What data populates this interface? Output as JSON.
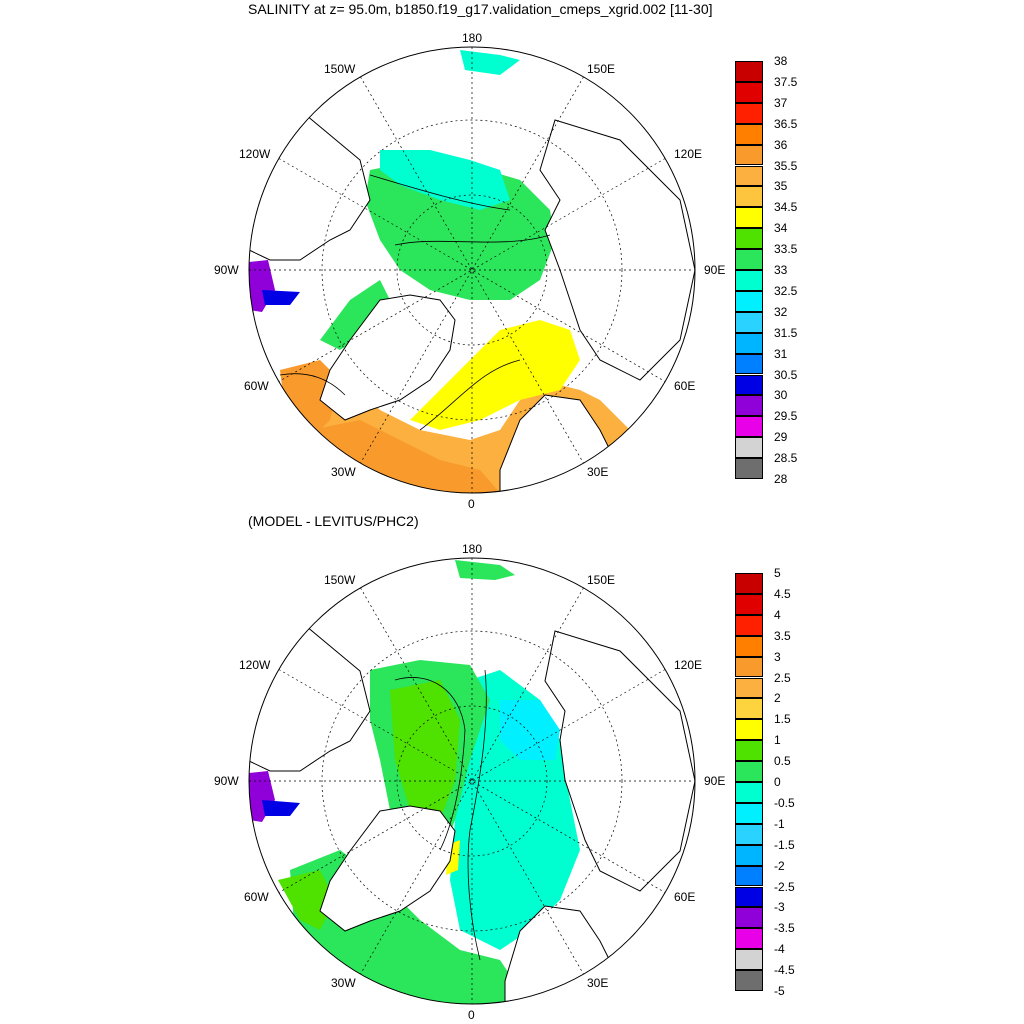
{
  "title": "SALINITY at z=  95.0m, b1850.f19_g17.validation_cmeps_xgrid.002 [11-30]",
  "subtitle": "(MODEL - LEVITUS/PHC2)",
  "longitude_labels": [
    "180",
    "150E",
    "120E",
    "90E",
    "60E",
    "30E",
    "0",
    "30W",
    "60W",
    "90W",
    "120W",
    "150W"
  ],
  "colorbar_top": {
    "labels": [
      "38",
      "37.5",
      "37",
      "36.5",
      "36",
      "35.5",
      "35",
      "34.5",
      "34",
      "33.5",
      "33",
      "32.5",
      "32",
      "31.5",
      "31",
      "30.5",
      "30",
      "29.5",
      "29",
      "28.5",
      "28"
    ],
    "colors": [
      "#c80000",
      "#e10000",
      "#ff2000",
      "#ff8000",
      "#f99a2c",
      "#fbb040",
      "#fdc53e",
      "#ffff00",
      "#4fe100",
      "#2be55a",
      "#00ffd0",
      "#00f0ff",
      "#2ad3ff",
      "#00b5ff",
      "#0080ff",
      "#0000e5",
      "#9000d8",
      "#e800e8",
      "#d3d3d3",
      "#6e6e6e"
    ]
  },
  "colorbar_bottom": {
    "labels": [
      "5",
      "4.5",
      "4",
      "3.5",
      "3",
      "2.5",
      "2",
      "1.5",
      "1",
      "0.5",
      "0",
      "-0.5",
      "-1",
      "-1.5",
      "-2",
      "-2.5",
      "-3",
      "-3.5",
      "-4",
      "-4.5",
      "-5"
    ],
    "colors": [
      "#c80000",
      "#e10000",
      "#ff2000",
      "#ff8000",
      "#f99a2c",
      "#fbb040",
      "#fdd33e",
      "#ffff00",
      "#4fe100",
      "#2be55a",
      "#00ffd0",
      "#00f0ff",
      "#2ad3ff",
      "#00b5ff",
      "#0080ff",
      "#0000e5",
      "#9000d8",
      "#e800e8",
      "#d3d3d3",
      "#6e6e6e"
    ]
  },
  "colors": {
    "land": "#ffffff",
    "coast": "#000000",
    "grid": "#000000"
  }
}
